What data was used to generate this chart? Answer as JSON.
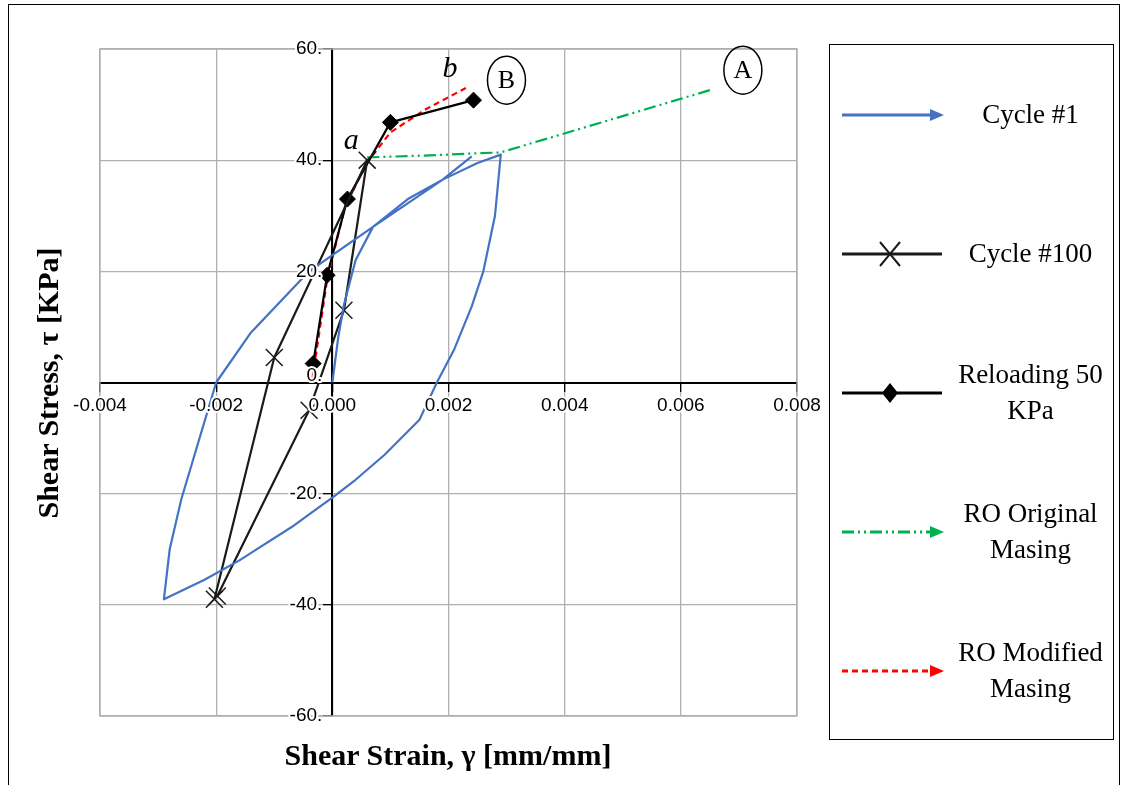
{
  "chart_data": {
    "type": "line",
    "xlabel": "Shear Strain, γ [mm/mm]",
    "ylabel": "Shear Stress, τ [KPa]",
    "xlim": [
      -0.004,
      0.008
    ],
    "ylim": [
      -60,
      60
    ],
    "xticks": [
      {
        "value": -0.004,
        "label": "-0.004"
      },
      {
        "value": -0.002,
        "label": "-0.002"
      },
      {
        "value": 0,
        "label": "0.000"
      },
      {
        "value": 0.002,
        "label": "0.002"
      },
      {
        "value": 0.004,
        "label": "0.004"
      },
      {
        "value": 0.006,
        "label": "0.006"
      },
      {
        "value": 0.008,
        "label": "0.008"
      }
    ],
    "yticks": [
      {
        "value": -60,
        "label": "-60."
      },
      {
        "value": -40,
        "label": "-40."
      },
      {
        "value": -20,
        "label": "-20."
      },
      {
        "value": 0,
        "label": "0."
      },
      {
        "value": 20,
        "label": "20."
      },
      {
        "value": 40,
        "label": "40."
      },
      {
        "value": 60,
        "label": "60."
      }
    ],
    "grid": true,
    "legend": "right",
    "series": [
      {
        "name": "Cycle #1",
        "color": "#4472c4",
        "marker": "none",
        "line_style": "solid",
        "x": [
          0,
          0.0001,
          0.0002,
          0.0004,
          0.0007,
          0.0013,
          0.0019,
          0.0025,
          0.0029,
          0.0028,
          0.0026,
          0.0024,
          0.0021,
          0.0018,
          0.0015,
          0.0009,
          0.0004,
          0,
          -0.0007,
          -0.0016,
          -0.0022,
          -0.0029,
          -0.0028,
          -0.0026,
          -0.002,
          -0.0014,
          -0.0004,
          0.0007,
          0.0019,
          0.0024
        ],
        "values": [
          0,
          8,
          14,
          22,
          28,
          33,
          36.5,
          39.5,
          41,
          30,
          20,
          13.7,
          6,
          0,
          -6.7,
          -13,
          -17.5,
          -20.7,
          -26,
          -32,
          -35.5,
          -39,
          -30,
          -21,
          0,
          9,
          20,
          28,
          36.5,
          40.7
        ]
      },
      {
        "name": "Cycle #100",
        "color": "#1a1a1a",
        "marker": "cross",
        "line_style": "solid",
        "x": [
          -0.00203,
          -0.001,
          0.0006,
          0.0002,
          -0.0004,
          -0.00198
        ],
        "values": [
          -39,
          4.5,
          40,
          13,
          -5,
          -38.4
        ]
      },
      {
        "name": "Reloading 50 KPa",
        "color": "#000000",
        "marker": "diamond",
        "line_style": "solid",
        "x": [
          -0.00033,
          -9e-05,
          0.00026,
          0.001,
          0.00243
        ],
        "values": [
          3.4,
          19.3,
          33,
          46.8,
          50.8
        ]
      },
      {
        "name": "RO Original Masing",
        "color": "#00b050",
        "marker": "none",
        "line_style": "dashdot",
        "x": [
          0.0006,
          0.0015,
          0.0029,
          0.0065
        ],
        "values": [
          40.5,
          40.8,
          41.4,
          52.6
        ]
      },
      {
        "name": "RO Modified Masing",
        "color": "#ff0000",
        "marker": "none",
        "line_style": "dashed",
        "x": [
          -0.00034,
          -9e-05,
          0.00022,
          0.0006,
          0.001,
          0.0016,
          0.0023
        ],
        "values": [
          0.9,
          18.5,
          31.7,
          39.6,
          45,
          49.1,
          53
        ]
      }
    ],
    "annotations": [
      {
        "text": "a",
        "x": 0.0006,
        "y": 40
      },
      {
        "text": "b",
        "x": 0.0023,
        "y": 53
      },
      {
        "text": "B",
        "x": 0.00243,
        "y": 50.8
      },
      {
        "text": "A",
        "x": 0.0065,
        "y": 52.6
      }
    ]
  }
}
